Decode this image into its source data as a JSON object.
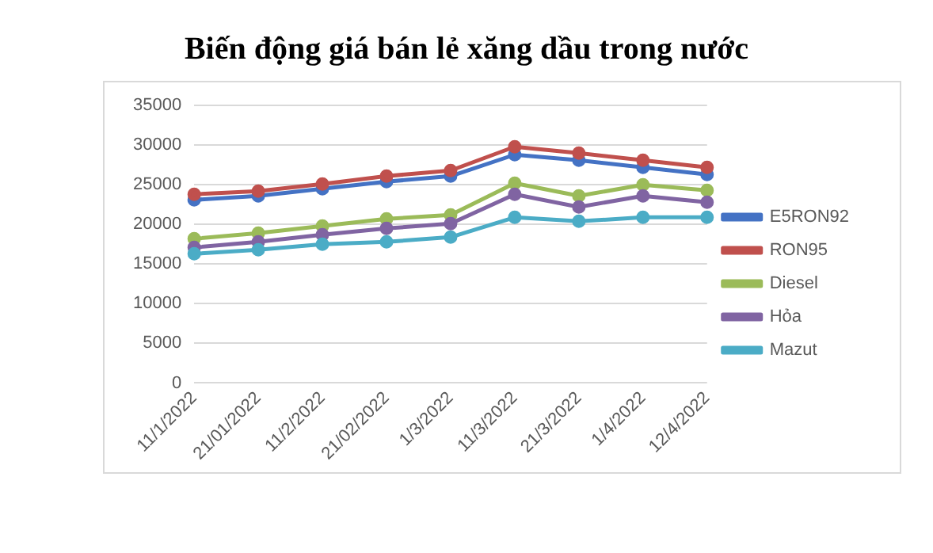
{
  "chart_data": {
    "type": "line",
    "title": "Biến động giá bán lẻ xăng dầu trong nước",
    "categories": [
      "11/1/2022",
      "21/01/2022",
      "11/2/2022",
      "21/02/2022",
      "1/3/2022",
      "11/3/2022",
      "21/3/2022",
      "1/4/2022",
      "12/4/2022"
    ],
    "series": [
      {
        "name": "E5RON92",
        "color": "#4472c4",
        "values": [
          23100,
          23600,
          24500,
          25400,
          26100,
          28800,
          28100,
          27200,
          26300
        ]
      },
      {
        "name": "RON95",
        "color": "#c0504d",
        "values": [
          23800,
          24200,
          25100,
          26100,
          26800,
          29800,
          29000,
          28100,
          27200
        ]
      },
      {
        "name": "Diesel",
        "color": "#9bbb59",
        "values": [
          18200,
          18900,
          19800,
          20700,
          21200,
          25200,
          23600,
          25000,
          24300
        ]
      },
      {
        "name": "Hỏa",
        "color": "#8064a2",
        "values": [
          17100,
          17800,
          18700,
          19500,
          20100,
          23800,
          22200,
          23600,
          22800
        ]
      },
      {
        "name": "Mazut",
        "color": "#4bacc6",
        "values": [
          16300,
          16800,
          17500,
          17800,
          18400,
          20900,
          20400,
          20900,
          20900
        ]
      }
    ],
    "ylim": [
      0,
      35000
    ],
    "yticks": [
      0,
      5000,
      10000,
      15000,
      20000,
      25000,
      30000,
      35000
    ],
    "grid": "y",
    "legend": "right",
    "marker": "circle",
    "line_style": "solid"
  }
}
